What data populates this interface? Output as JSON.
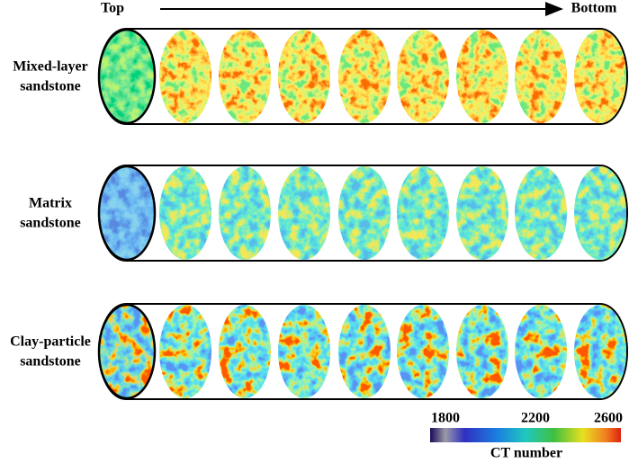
{
  "header": {
    "start": "Top",
    "end": "Bottom"
  },
  "rows": [
    {
      "label_lines": [
        "Mixed-layer",
        "sandstone"
      ]
    },
    {
      "label_lines": [
        "Matrix",
        "sandstone"
      ]
    },
    {
      "label_lines": [
        "Clay-particle",
        "sandstone"
      ]
    }
  ],
  "colorbar": {
    "ticks": [
      "1800",
      "2200",
      "2600"
    ],
    "title": "CT number"
  }
}
